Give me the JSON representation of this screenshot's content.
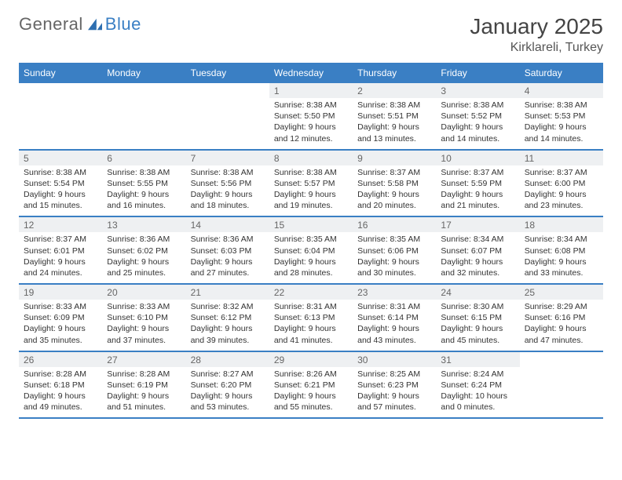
{
  "logo": {
    "text1": "General",
    "text2": "Blue",
    "icon_color": "#2e6fb0"
  },
  "title": "January 2025",
  "location": "Kirklareli, Turkey",
  "colors": {
    "accent": "#3a7fc4",
    "row_bg": "#eef0f2",
    "text": "#333333"
  },
  "day_headers": [
    "Sunday",
    "Monday",
    "Tuesday",
    "Wednesday",
    "Thursday",
    "Friday",
    "Saturday"
  ],
  "weeks": [
    {
      "nums": [
        "",
        "",
        "",
        "1",
        "2",
        "3",
        "4"
      ],
      "details": [
        "",
        "",
        "",
        "Sunrise: 8:38 AM\nSunset: 5:50 PM\nDaylight: 9 hours and 12 minutes.",
        "Sunrise: 8:38 AM\nSunset: 5:51 PM\nDaylight: 9 hours and 13 minutes.",
        "Sunrise: 8:38 AM\nSunset: 5:52 PM\nDaylight: 9 hours and 14 minutes.",
        "Sunrise: 8:38 AM\nSunset: 5:53 PM\nDaylight: 9 hours and 14 minutes."
      ]
    },
    {
      "nums": [
        "5",
        "6",
        "7",
        "8",
        "9",
        "10",
        "11"
      ],
      "details": [
        "Sunrise: 8:38 AM\nSunset: 5:54 PM\nDaylight: 9 hours and 15 minutes.",
        "Sunrise: 8:38 AM\nSunset: 5:55 PM\nDaylight: 9 hours and 16 minutes.",
        "Sunrise: 8:38 AM\nSunset: 5:56 PM\nDaylight: 9 hours and 18 minutes.",
        "Sunrise: 8:38 AM\nSunset: 5:57 PM\nDaylight: 9 hours and 19 minutes.",
        "Sunrise: 8:37 AM\nSunset: 5:58 PM\nDaylight: 9 hours and 20 minutes.",
        "Sunrise: 8:37 AM\nSunset: 5:59 PM\nDaylight: 9 hours and 21 minutes.",
        "Sunrise: 8:37 AM\nSunset: 6:00 PM\nDaylight: 9 hours and 23 minutes."
      ]
    },
    {
      "nums": [
        "12",
        "13",
        "14",
        "15",
        "16",
        "17",
        "18"
      ],
      "details": [
        "Sunrise: 8:37 AM\nSunset: 6:01 PM\nDaylight: 9 hours and 24 minutes.",
        "Sunrise: 8:36 AM\nSunset: 6:02 PM\nDaylight: 9 hours and 25 minutes.",
        "Sunrise: 8:36 AM\nSunset: 6:03 PM\nDaylight: 9 hours and 27 minutes.",
        "Sunrise: 8:35 AM\nSunset: 6:04 PM\nDaylight: 9 hours and 28 minutes.",
        "Sunrise: 8:35 AM\nSunset: 6:06 PM\nDaylight: 9 hours and 30 minutes.",
        "Sunrise: 8:34 AM\nSunset: 6:07 PM\nDaylight: 9 hours and 32 minutes.",
        "Sunrise: 8:34 AM\nSunset: 6:08 PM\nDaylight: 9 hours and 33 minutes."
      ]
    },
    {
      "nums": [
        "19",
        "20",
        "21",
        "22",
        "23",
        "24",
        "25"
      ],
      "details": [
        "Sunrise: 8:33 AM\nSunset: 6:09 PM\nDaylight: 9 hours and 35 minutes.",
        "Sunrise: 8:33 AM\nSunset: 6:10 PM\nDaylight: 9 hours and 37 minutes.",
        "Sunrise: 8:32 AM\nSunset: 6:12 PM\nDaylight: 9 hours and 39 minutes.",
        "Sunrise: 8:31 AM\nSunset: 6:13 PM\nDaylight: 9 hours and 41 minutes.",
        "Sunrise: 8:31 AM\nSunset: 6:14 PM\nDaylight: 9 hours and 43 minutes.",
        "Sunrise: 8:30 AM\nSunset: 6:15 PM\nDaylight: 9 hours and 45 minutes.",
        "Sunrise: 8:29 AM\nSunset: 6:16 PM\nDaylight: 9 hours and 47 minutes."
      ]
    },
    {
      "nums": [
        "26",
        "27",
        "28",
        "29",
        "30",
        "31",
        ""
      ],
      "details": [
        "Sunrise: 8:28 AM\nSunset: 6:18 PM\nDaylight: 9 hours and 49 minutes.",
        "Sunrise: 8:28 AM\nSunset: 6:19 PM\nDaylight: 9 hours and 51 minutes.",
        "Sunrise: 8:27 AM\nSunset: 6:20 PM\nDaylight: 9 hours and 53 minutes.",
        "Sunrise: 8:26 AM\nSunset: 6:21 PM\nDaylight: 9 hours and 55 minutes.",
        "Sunrise: 8:25 AM\nSunset: 6:23 PM\nDaylight: 9 hours and 57 minutes.",
        "Sunrise: 8:24 AM\nSunset: 6:24 PM\nDaylight: 10 hours and 0 minutes.",
        ""
      ]
    }
  ]
}
